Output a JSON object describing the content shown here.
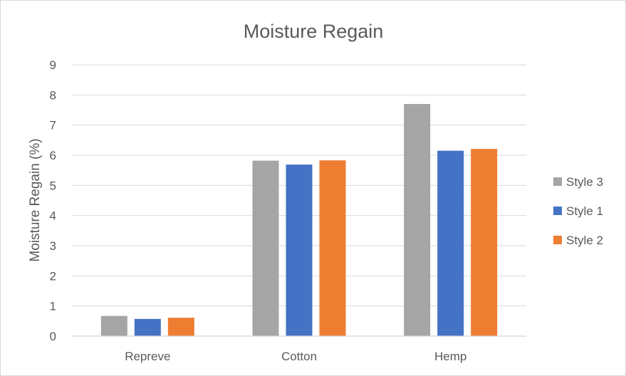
{
  "chart_data": {
    "type": "bar",
    "title": "Moisture Regain",
    "xlabel": "",
    "ylabel": "Moisture Regain (%)",
    "ylim": [
      0,
      9
    ],
    "yticks": [
      "0",
      "1",
      "2",
      "3",
      "4",
      "5",
      "6",
      "7",
      "8",
      "9"
    ],
    "categories": [
      "Repreve",
      "Cotton",
      "Hemp"
    ],
    "series": [
      {
        "name": "Style 3",
        "color": "#a5a5a5",
        "values": [
          0.67,
          5.82,
          7.7
        ]
      },
      {
        "name": "Style 1",
        "color": "#4472c4",
        "values": [
          0.57,
          5.69,
          6.15
        ]
      },
      {
        "name": "Style 2",
        "color": "#ed7d31",
        "values": [
          0.61,
          5.83,
          6.21
        ]
      }
    ],
    "grid": true,
    "legend": "right"
  }
}
